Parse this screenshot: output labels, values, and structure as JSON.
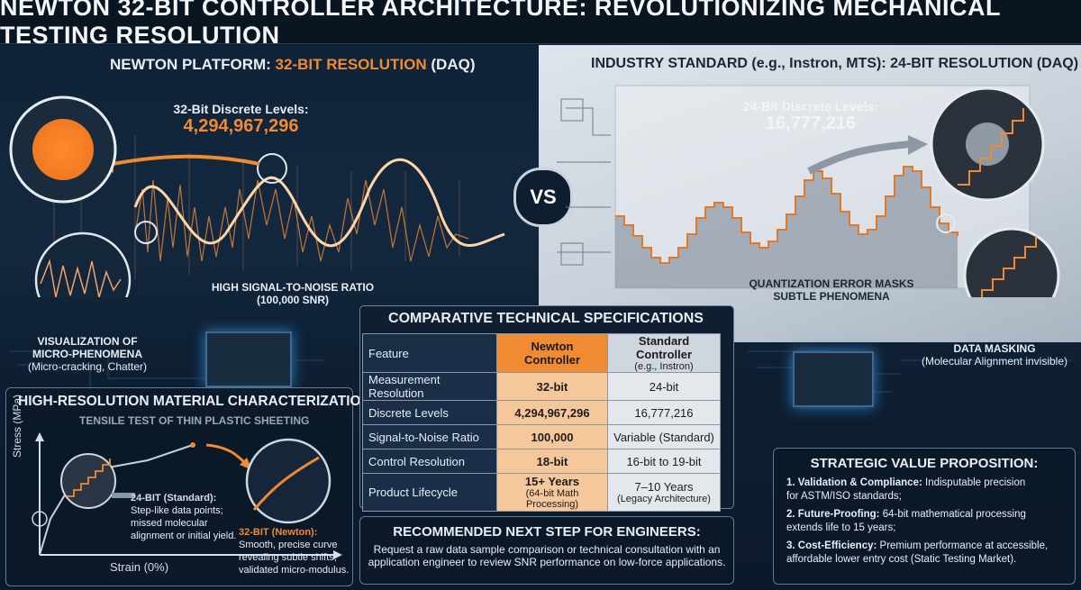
{
  "title": "NEWTON 32-BIT CONTROLLER ARCHITECTURE: REVOLUTIONIZING MECHANICAL TESTING RESOLUTION",
  "left": {
    "header_a": "NEWTON PLATFORM:",
    "header_b": "32-BIT RESOLUTION",
    "header_c": "(DAQ)",
    "levels_label": "32-Bit Discrete Levels:",
    "levels_value": "4,294,967,296",
    "snr_line1": "HIGH SIGNAL-TO-NOISE RATIO",
    "snr_line2": "(100,000 SNR)",
    "viz_line1": "VISUALIZATION OF",
    "viz_line2": "MICRO-PHENOMENA",
    "viz_line3": "(Micro-cracking, Chatter)"
  },
  "vs": "VS",
  "right": {
    "header": "INDUSTRY STANDARD (e.g., Instron, MTS): 24-BIT RESOLUTION (DAQ)",
    "levels_label": "24-Bit Discrete Levels:",
    "levels_value": "16,777,216",
    "quant_line1": "QUANTIZATION ERROR MASKS",
    "quant_line2": "SUBTLE PHENOMENA",
    "mask_line1": "DATA MASKING",
    "mask_line2": "(Molecular Alignment invisible)"
  },
  "char": {
    "title": "HIGH-RESOLUTION MATERIAL CHARACTERIZATION",
    "subtitle": "TENSILE TEST OF THIN PLASTIC SHEETING",
    "ylabel": "Stress (MPa)",
    "xlabel": "Strain (0%)",
    "n24_title": "24-BIT (Standard):",
    "n24_l1": "Step-like data points;",
    "n24_l2": "missed molecular",
    "n24_l3": "alignment or initial yield.",
    "n32_title": "32-BIT (Newton):",
    "n32_l1": "Smooth, precise curve",
    "n32_l2": "revealing subtle shifts;",
    "n32_l3": "validated micro-modulus."
  },
  "specs": {
    "title": "COMPARATIVE TECHNICAL SPECIFICATIONS",
    "head": {
      "feature": "Feature",
      "newton": "Newton Controller",
      "standard": "Standard Controller",
      "standard_sub": "(e.g., Instron)"
    },
    "rows": [
      {
        "feature": "Measurement Resolution",
        "newton": "32-bit",
        "standard": "24-bit"
      },
      {
        "feature": "Discrete Levels",
        "newton": "4,294,967,296",
        "standard": "16,777,216"
      },
      {
        "feature": "Signal-to-Noise Ratio",
        "newton": "100,000",
        "standard": "Variable (Standard)"
      },
      {
        "feature": "Control Resolution",
        "newton": "18-bit",
        "standard": "16-bit to 19-bit"
      },
      {
        "feature": "Product Lifecycle",
        "newton": "15+ Years",
        "newton_sub": "(64-bit Math Processing)",
        "standard": "7–10 Years",
        "standard_sub": "(Legacy Architecture)"
      }
    ]
  },
  "next": {
    "title": "RECOMMENDED NEXT STEP FOR ENGINEERS:",
    "line1": "Request a raw data sample comparison or technical consultation with an",
    "line2": "application engineer to review SNR performance on low-force applications."
  },
  "value": {
    "title": "STRATEGIC VALUE PROPOSITION:",
    "i1_bold": "1. Validation & Compliance:",
    "i1_text": "Indisputable precision",
    "i1_text2": "for ASTM/ISO standards;",
    "i2_bold": "2. Future-Proofing:",
    "i2_text": "64-bit mathematical processing",
    "i2_text2": "extends life to 15 years;",
    "i3_bold": "3. Cost-Efficiency:",
    "i3_text": "Premium performance at accessible,",
    "i3_text2": "affordable lower entry cost (Static Testing Market)."
  },
  "colors": {
    "orange": "#f08a33",
    "navy": "#0d1c2e",
    "steel": "#c8d1da"
  }
}
